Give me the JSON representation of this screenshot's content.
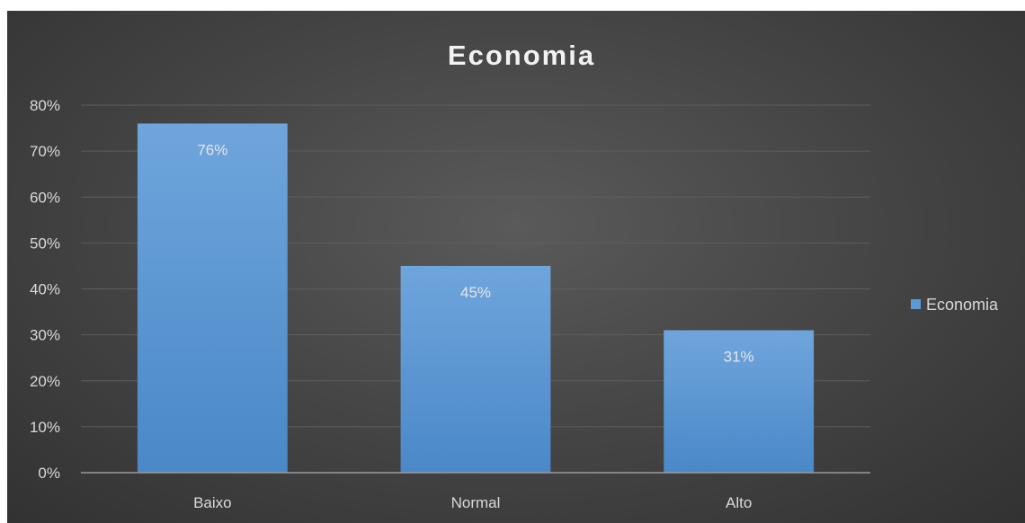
{
  "chart_data": {
    "type": "bar",
    "title": "Economia",
    "categories": [
      "Baixo",
      "Normal",
      "Alto"
    ],
    "series": [
      {
        "name": "Economia",
        "values": [
          0.76,
          0.45,
          0.31
        ],
        "data_labels": [
          "76%",
          "45%",
          "31%"
        ]
      }
    ],
    "ylim": [
      0,
      0.8
    ],
    "yticks": [
      0,
      0.1,
      0.2,
      0.3,
      0.4,
      0.5,
      0.6,
      0.7,
      0.8
    ],
    "ytick_labels": [
      "0%",
      "10%",
      "20%",
      "30%",
      "40%",
      "50%",
      "60%",
      "70%",
      "80%"
    ],
    "grid": true,
    "legend": "right",
    "colors": {
      "bar_top": "#6fa5dc",
      "bar_bottom": "#4a88c8",
      "legend_swatch": "#5b9bd5",
      "gridline": "#5e5e5e",
      "axis": "#9a9a9a"
    }
  }
}
